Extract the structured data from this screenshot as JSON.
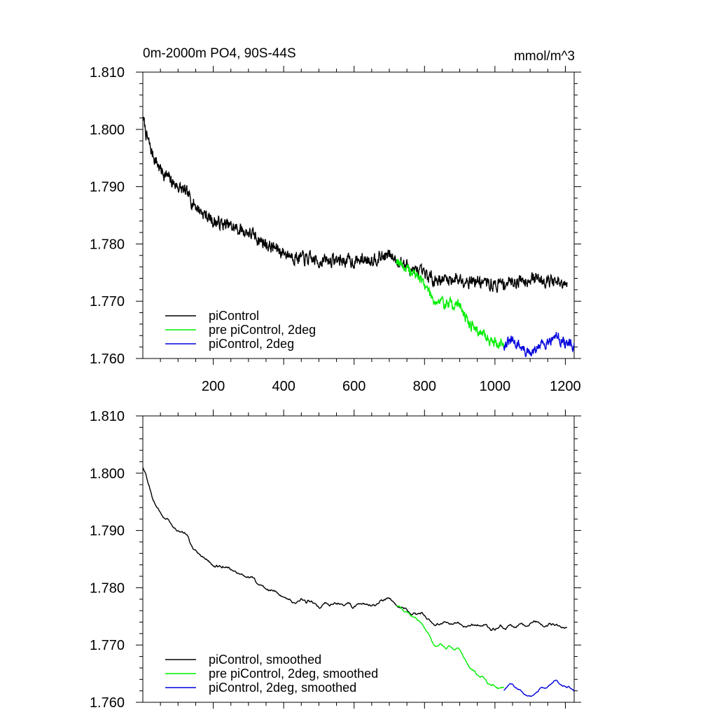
{
  "header": {
    "title": "0m-2000m PO4, 90S-44S",
    "units": "mmol/m^3"
  },
  "chart_data": [
    {
      "type": "line",
      "title": "0m-2000m PO4, 90S-44S",
      "units": "mmol/m^3",
      "xlim": [
        0,
        1225
      ],
      "ylim": [
        1.76,
        1.81
      ],
      "yticks": [
        "1.810",
        "1.800",
        "1.790",
        "1.780",
        "1.770",
        "1.760"
      ],
      "xticks": [
        "200",
        "400",
        "600",
        "800",
        "1000",
        "1200"
      ],
      "legend_position": "bottom-left",
      "series": [
        {
          "name": "piControl",
          "color": "#000000",
          "noise": 0.0011,
          "seed": 7,
          "points": [
            [
              1,
              1.802
            ],
            [
              10,
              1.799
            ],
            [
              25,
              1.796
            ],
            [
              50,
              1.793
            ],
            [
              80,
              1.791
            ],
            [
              120,
              1.789
            ],
            [
              160,
              1.786
            ],
            [
              200,
              1.784
            ],
            [
              250,
              1.783
            ],
            [
              300,
              1.782
            ],
            [
              350,
              1.78
            ],
            [
              400,
              1.7785
            ],
            [
              450,
              1.7775
            ],
            [
              500,
              1.777
            ],
            [
              550,
              1.7772
            ],
            [
              600,
              1.777
            ],
            [
              650,
              1.7775
            ],
            [
              700,
              1.778
            ],
            [
              740,
              1.7765
            ],
            [
              780,
              1.775
            ],
            [
              820,
              1.774
            ],
            [
              860,
              1.7738
            ],
            [
              900,
              1.774
            ],
            [
              950,
              1.7735
            ],
            [
              1000,
              1.7728
            ],
            [
              1050,
              1.7735
            ],
            [
              1100,
              1.774
            ],
            [
              1150,
              1.7738
            ],
            [
              1200,
              1.7725
            ],
            [
              1205,
              1.7725
            ]
          ]
        },
        {
          "name": "pre piControl, 2deg",
          "color": "#00ee00",
          "noise": 0.0009,
          "seed": 19,
          "points": [
            [
              720,
              1.7775
            ],
            [
              750,
              1.7755
            ],
            [
              780,
              1.7745
            ],
            [
              800,
              1.773
            ],
            [
              830,
              1.77
            ],
            [
              870,
              1.7695
            ],
            [
              900,
              1.7695
            ],
            [
              920,
              1.7665
            ],
            [
              950,
              1.765
            ],
            [
              980,
              1.7635
            ],
            [
              1000,
              1.7628
            ],
            [
              1025,
              1.7625
            ]
          ]
        },
        {
          "name": "piControl, 2deg",
          "color": "#0000dd",
          "noise": 0.0009,
          "seed": 31,
          "points": [
            [
              1025,
              1.7625
            ],
            [
              1050,
              1.763
            ],
            [
              1075,
              1.762
            ],
            [
              1100,
              1.7605
            ],
            [
              1125,
              1.762
            ],
            [
              1150,
              1.7632
            ],
            [
              1175,
              1.764
            ],
            [
              1195,
              1.7628
            ],
            [
              1225,
              1.762
            ]
          ]
        }
      ]
    },
    {
      "type": "line",
      "xlim": [
        0,
        1225
      ],
      "ylim": [
        1.76,
        1.81
      ],
      "yticks": [
        "1.810",
        "1.800",
        "1.790",
        "1.780",
        "1.770",
        "1.760"
      ],
      "legend_position": "bottom-left",
      "series": [
        {
          "name": "piControl, smoothed",
          "color": "#000000",
          "noise": 0.0011,
          "seed": 7,
          "smooth": 7,
          "points": [
            [
              1,
              1.802
            ],
            [
              10,
              1.799
            ],
            [
              25,
              1.796
            ],
            [
              50,
              1.793
            ],
            [
              80,
              1.791
            ],
            [
              120,
              1.789
            ],
            [
              160,
              1.786
            ],
            [
              200,
              1.784
            ],
            [
              250,
              1.783
            ],
            [
              300,
              1.782
            ],
            [
              350,
              1.78
            ],
            [
              400,
              1.7785
            ],
            [
              450,
              1.7775
            ],
            [
              500,
              1.777
            ],
            [
              550,
              1.7772
            ],
            [
              600,
              1.777
            ],
            [
              650,
              1.7775
            ],
            [
              700,
              1.778
            ],
            [
              740,
              1.7765
            ],
            [
              780,
              1.775
            ],
            [
              820,
              1.774
            ],
            [
              860,
              1.7738
            ],
            [
              900,
              1.774
            ],
            [
              950,
              1.7735
            ],
            [
              1000,
              1.7728
            ],
            [
              1050,
              1.7735
            ],
            [
              1100,
              1.774
            ],
            [
              1150,
              1.7738
            ],
            [
              1200,
              1.7725
            ],
            [
              1205,
              1.7725
            ]
          ]
        },
        {
          "name": "pre piControl, 2deg, smoothed",
          "color": "#00ee00",
          "noise": 0.0009,
          "seed": 19,
          "smooth": 7,
          "points": [
            [
              720,
              1.7775
            ],
            [
              750,
              1.7755
            ],
            [
              780,
              1.7745
            ],
            [
              800,
              1.773
            ],
            [
              830,
              1.77
            ],
            [
              870,
              1.7695
            ],
            [
              900,
              1.7695
            ],
            [
              920,
              1.7665
            ],
            [
              950,
              1.765
            ],
            [
              980,
              1.7635
            ],
            [
              1000,
              1.7628
            ],
            [
              1025,
              1.7625
            ]
          ]
        },
        {
          "name": "piControl, 2deg, smoothed",
          "color": "#0000dd",
          "noise": 0.0009,
          "seed": 31,
          "smooth": 7,
          "points": [
            [
              1025,
              1.7625
            ],
            [
              1050,
              1.763
            ],
            [
              1075,
              1.762
            ],
            [
              1100,
              1.7605
            ],
            [
              1125,
              1.762
            ],
            [
              1150,
              1.7632
            ],
            [
              1175,
              1.764
            ],
            [
              1195,
              1.7628
            ],
            [
              1225,
              1.762
            ]
          ]
        }
      ]
    }
  ]
}
